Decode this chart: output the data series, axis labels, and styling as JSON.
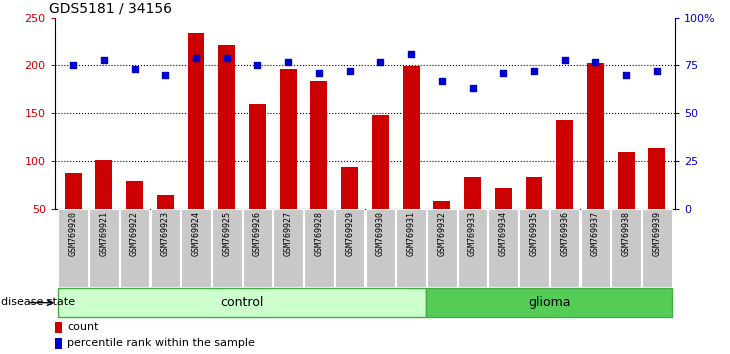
{
  "title": "GDS5181 / 34156",
  "samples": [
    "GSM769920",
    "GSM769921",
    "GSM769922",
    "GSM769923",
    "GSM769924",
    "GSM769925",
    "GSM769926",
    "GSM769927",
    "GSM769928",
    "GSM769929",
    "GSM769930",
    "GSM769931",
    "GSM769932",
    "GSM769933",
    "GSM769934",
    "GSM769935",
    "GSM769936",
    "GSM769937",
    "GSM769938",
    "GSM769939"
  ],
  "counts": [
    88,
    101,
    79,
    65,
    234,
    221,
    160,
    196,
    184,
    94,
    148,
    199,
    58,
    83,
    72,
    83,
    143,
    203,
    110,
    114
  ],
  "percentiles": [
    75,
    78,
    73,
    70,
    79,
    79,
    75,
    77,
    71,
    72,
    77,
    81,
    67,
    63,
    71,
    72,
    78,
    77,
    70,
    72
  ],
  "control_count": 12,
  "glioma_count": 8,
  "bar_color": "#cc0000",
  "dot_color": "#0000cc",
  "control_label": "control",
  "glioma_label": "glioma",
  "legend_count": "count",
  "legend_pct": "percentile rank within the sample",
  "ylim_left": [
    50,
    250
  ],
  "ylim_right": [
    0,
    100
  ],
  "yticks_left": [
    50,
    100,
    150,
    200,
    250
  ],
  "yticks_right": [
    0,
    25,
    50,
    75,
    100
  ],
  "ytick_labels_right": [
    "0",
    "25",
    "50",
    "75",
    "100%"
  ],
  "grid_levels": [
    100,
    150,
    200
  ],
  "control_color": "#ccffcc",
  "glioma_color": "#55cc55",
  "bar_width": 0.55,
  "disease_state_label": "disease state"
}
